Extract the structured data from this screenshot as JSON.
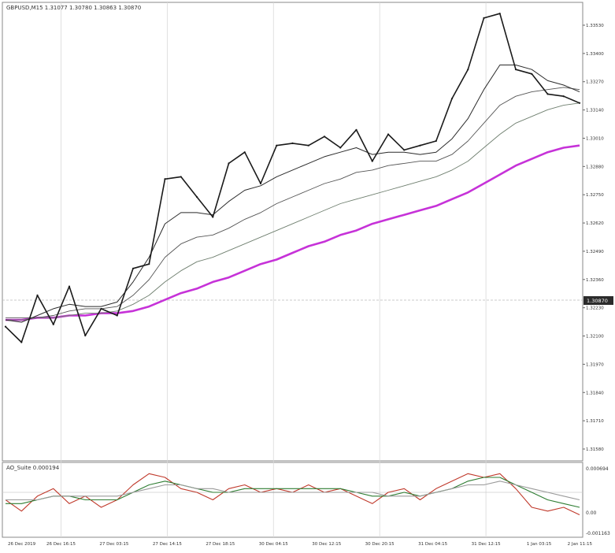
{
  "window": {
    "symbol_header": "GBPUSD,M15  1.31077 1.30780 1.30863 1.30870",
    "current_price_label": "1.30870"
  },
  "indicator": {
    "header": "AO_Suite  0.000194",
    "scale_top": "0.000694",
    "scale_mid": "0.00",
    "scale_bottom": "-0.001163"
  },
  "colors": {
    "price": "#1a1a1a",
    "ma_slow": "#c632d8",
    "ma_fast": "#2b2b2b",
    "ma_mid": "#555555",
    "ma_long": "#6f7f6f",
    "osc_red": "#c0392b",
    "osc_green": "#2e7d32",
    "osc_gray": "#9a9a9a",
    "grid": "#d9d9d9",
    "background": "#ffffff"
  },
  "chart_data": {
    "type": "line",
    "title": "GBPUSD,M15",
    "y_ticks": [
      "1.33530",
      "1.33400",
      "1.33270",
      "1.33140",
      "1.33010",
      "1.32880",
      "1.32750",
      "1.32620",
      "1.32490",
      "1.32360",
      "1.32230",
      "1.32100",
      "1.31970",
      "1.31840",
      "1.31710",
      "1.31580"
    ],
    "x_ticks": [
      "26 Dec 2019",
      "26 Dec 16:15",
      "27 Dec 03:15",
      "27 Dec 14:15",
      "27 Dec 18:15",
      "30 Dec 04:15",
      "30 Dec 12:15",
      "30 Dec 20:15",
      "31 Dec 04:15",
      "31 Dec 12:15",
      "1 Jan 03:15",
      "2 Jan 11:15"
    ],
    "ylim": [
      1.3155,
      1.336
    ],
    "series": [
      {
        "values": [
          1.3215,
          1.3208,
          1.3229,
          1.3216,
          1.3233,
          1.3211,
          1.3223,
          1.322,
          1.3241,
          1.3243,
          1.3281,
          1.3282,
          1.3273,
          1.3264,
          1.3288,
          1.3293,
          1.3279,
          1.3296,
          1.3297,
          1.3296,
          1.33,
          1.3295,
          1.3303,
          1.3289,
          1.3301,
          1.3294,
          1.3296,
          1.3298,
          1.3317,
          1.333,
          1.3353,
          1.3355,
          1.333,
          1.3328,
          1.3319,
          1.3318,
          1.3315
        ]
      },
      {
        "values": [
          1.3218,
          1.3217,
          1.322,
          1.3223,
          1.3225,
          1.3224,
          1.3224,
          1.3226,
          1.3235,
          1.3246,
          1.3261,
          1.3266,
          1.3266,
          1.3265,
          1.3271,
          1.3276,
          1.3278,
          1.3282,
          1.3285,
          1.3288,
          1.3291,
          1.3293,
          1.3295,
          1.3292,
          1.3293,
          1.3293,
          1.3292,
          1.3293,
          1.3299,
          1.3308,
          1.3321,
          1.3332,
          1.3332,
          1.333,
          1.3325,
          1.3323,
          1.332
        ]
      },
      {
        "values": [
          1.3219,
          1.3219,
          1.3219,
          1.322,
          1.3222,
          1.3223,
          1.3223,
          1.3224,
          1.3229,
          1.3236,
          1.3246,
          1.3252,
          1.3255,
          1.3256,
          1.3259,
          1.3263,
          1.3266,
          1.327,
          1.3273,
          1.3276,
          1.3279,
          1.3281,
          1.3284,
          1.3285,
          1.3287,
          1.3288,
          1.3289,
          1.3289,
          1.3292,
          1.3298,
          1.3306,
          1.3314,
          1.3318,
          1.332,
          1.3321,
          1.3322,
          1.3321
        ]
      },
      {
        "values": [
          1.3218,
          1.3218,
          1.3219,
          1.3219,
          1.322,
          1.3221,
          1.3221,
          1.3222,
          1.3225,
          1.3229,
          1.3235,
          1.324,
          1.3244,
          1.3246,
          1.3249,
          1.3252,
          1.3255,
          1.3258,
          1.3261,
          1.3264,
          1.3267,
          1.327,
          1.3272,
          1.3274,
          1.3276,
          1.3278,
          1.328,
          1.3282,
          1.3285,
          1.3289,
          1.3295,
          1.3301,
          1.3306,
          1.3309,
          1.3312,
          1.3314,
          1.3315
        ]
      },
      {
        "values": [
          1.3218,
          1.3218,
          1.3219,
          1.3219,
          1.322,
          1.322,
          1.3221,
          1.3221,
          1.3222,
          1.3224,
          1.3227,
          1.323,
          1.3232,
          1.3235,
          1.3237,
          1.324,
          1.3243,
          1.3245,
          1.3248,
          1.3251,
          1.3253,
          1.3256,
          1.3258,
          1.3261,
          1.3263,
          1.3265,
          1.3267,
          1.3269,
          1.3272,
          1.3275,
          1.3279,
          1.3283,
          1.3287,
          1.329,
          1.3293,
          1.3295,
          1.3296
        ]
      }
    ],
    "oscillator": {
      "ylim": [
        -0.0012,
        0.0008
      ],
      "series": [
        {
          "values": [
            -0.0002,
            -0.0005,
            -0.0001,
            0.0001,
            -0.0003,
            -0.0001,
            -0.0004,
            -0.0002,
            0.0002,
            0.0005,
            0.0004,
            0.0001,
            0.0,
            -0.0002,
            0.0001,
            0.0002,
            0.0,
            0.0001,
            0.0,
            0.0002,
            0.0,
            0.0001,
            -0.0001,
            -0.0003,
            0.0,
            0.0001,
            -0.0002,
            0.0001,
            0.0003,
            0.0005,
            0.0004,
            0.0005,
            0.0001,
            -0.0004,
            -0.0005,
            -0.0004,
            -0.0006
          ]
        },
        {
          "values": [
            -0.0003,
            -0.0003,
            -0.0002,
            -0.0001,
            -0.0001,
            -0.0002,
            -0.0002,
            -0.0002,
            0.0,
            0.0002,
            0.0003,
            0.0002,
            0.0001,
            0.0,
            0.0,
            0.0001,
            0.0001,
            0.0001,
            0.0001,
            0.0001,
            0.0001,
            0.0001,
            0.0,
            -0.0001,
            -0.0001,
            0.0,
            -0.0001,
            0.0,
            0.0001,
            0.0003,
            0.0004,
            0.0004,
            0.0002,
            0.0,
            -0.0002,
            -0.0003,
            -0.0004
          ]
        },
        {
          "values": [
            -0.0002,
            -0.0002,
            -0.0002,
            -0.0001,
            -0.0001,
            -0.0001,
            -0.0001,
            -0.0001,
            0.0,
            0.0001,
            0.0002,
            0.0002,
            0.0001,
            0.0001,
            0.0,
            0.0,
            0.0,
            0.0,
            0.0,
            0.0,
            0.0,
            0.0,
            0.0,
            0.0,
            -0.0001,
            -0.0001,
            -0.0001,
            0.0,
            0.0001,
            0.0002,
            0.0002,
            0.0003,
            0.0002,
            0.0001,
            0.0,
            -0.0001,
            -0.0002
          ]
        }
      ]
    }
  }
}
